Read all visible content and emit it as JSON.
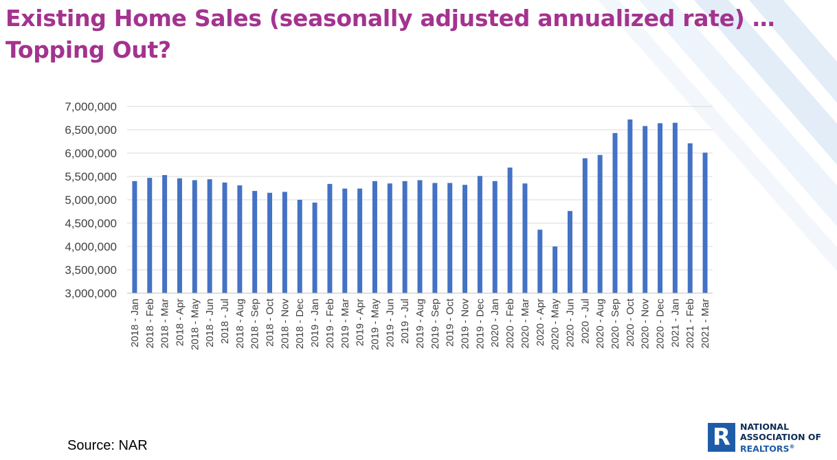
{
  "slide": {
    "title_line1": "Existing Home Sales (seasonally adjusted annualized rate) …",
    "title_line2": "Topping Out?",
    "source": "Source: NAR"
  },
  "logo": {
    "mark": "R",
    "line1": "NATIONAL",
    "line2": "ASSOCIATION OF",
    "line3": "REALTORS",
    "reg": "®"
  },
  "colors": {
    "title": "#a3338f",
    "bar": "#4472c4",
    "stripes": "#dce9f6"
  },
  "chart_data": {
    "type": "bar",
    "title": "",
    "xlabel": "",
    "ylabel": "",
    "ylim": [
      3000000,
      7000000
    ],
    "grid": true,
    "legend": "none",
    "yticks": [
      "3,000,000",
      "3,500,000",
      "4,000,000",
      "4,500,000",
      "5,000,000",
      "5,500,000",
      "6,000,000",
      "6,500,000",
      "7,000,000"
    ],
    "categories": [
      "2018 - Jan",
      "2018 - Feb",
      "2018 - Mar",
      "2018 - Apr",
      "2018 - May",
      "2018 - Jun",
      "2018 - Jul",
      "2018 - Aug",
      "2018 - Sep",
      "2018 - Oct",
      "2018 - Nov",
      "2018 - Dec",
      "2019 - Jan",
      "2019 - Feb",
      "2019 - Mar",
      "2019 - Apr",
      "2019 - May",
      "2019 - Jun",
      "2019 - Jul",
      "2019 - Aug",
      "2019 - Sep",
      "2019 - Oct",
      "2019 - Nov",
      "2019 - Dec",
      "2020 - Jan",
      "2020 - Feb",
      "2020 - Mar",
      "2020 - Apr",
      "2020 - May",
      "2020 - Jun",
      "2020 - Jul",
      "2020 - Aug",
      "2020 - Sep",
      "2020 - Oct",
      "2020 - Nov",
      "2020 - Dec",
      "2021 - Jan",
      "2021 - Feb",
      "2021 - Mar"
    ],
    "values": [
      5400000,
      5470000,
      5530000,
      5460000,
      5420000,
      5440000,
      5370000,
      5310000,
      5190000,
      5150000,
      5170000,
      5000000,
      4940000,
      5340000,
      5240000,
      5240000,
      5400000,
      5350000,
      5400000,
      5420000,
      5360000,
      5360000,
      5320000,
      5510000,
      5400000,
      5690000,
      5350000,
      4360000,
      4000000,
      4760000,
      5890000,
      5960000,
      6430000,
      6720000,
      6580000,
      6640000,
      6650000,
      6210000,
      6010000
    ]
  }
}
